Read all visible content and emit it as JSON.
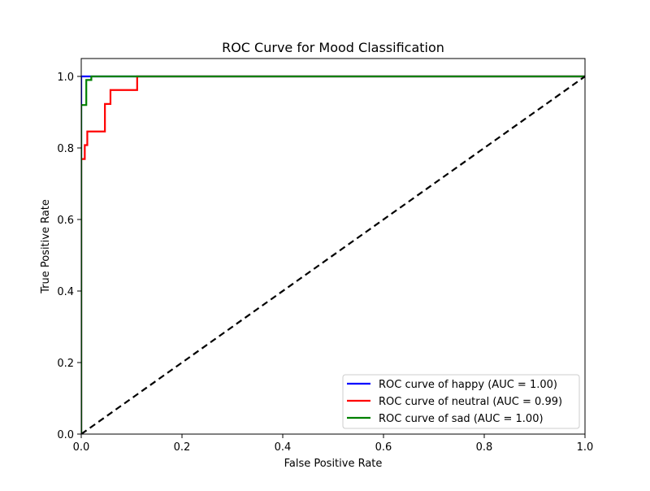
{
  "chart_data": {
    "type": "line",
    "title": "ROC Curve for Mood Classification",
    "xlabel": "False Positive Rate",
    "ylabel": "True Positive Rate",
    "xlim": [
      0.0,
      1.0
    ],
    "ylim": [
      0.0,
      1.05
    ],
    "xticks": [
      0.0,
      0.2,
      0.4,
      0.6,
      0.8,
      1.0
    ],
    "yticks": [
      0.0,
      0.2,
      0.4,
      0.6,
      0.8,
      1.0
    ],
    "xtick_labels": [
      "0.0",
      "0.2",
      "0.4",
      "0.6",
      "0.8",
      "1.0"
    ],
    "ytick_labels": [
      "0.0",
      "0.2",
      "0.4",
      "0.6",
      "0.8",
      "1.0"
    ],
    "grid": false,
    "legend_position": "lower-right",
    "series": [
      {
        "name": "ROC curve of happy (AUC = 1.00)",
        "color": "#0000ff",
        "line_style": "solid",
        "x": [
          0.0,
          0.0,
          0.02,
          1.0
        ],
        "y": [
          0.0,
          1.0,
          1.0,
          1.0
        ]
      },
      {
        "name": "ROC curve of neutral (AUC = 0.99)",
        "color": "#ff0000",
        "line_style": "solid",
        "x": [
          0.0,
          0.0,
          0.007,
          0.007,
          0.012,
          0.012,
          0.047,
          0.047,
          0.058,
          0.058,
          0.111,
          0.111,
          1.0
        ],
        "y": [
          0.0,
          0.769,
          0.769,
          0.808,
          0.808,
          0.846,
          0.846,
          0.923,
          0.923,
          0.962,
          0.962,
          1.0,
          1.0
        ]
      },
      {
        "name": "ROC curve of sad (AUC = 1.00)",
        "color": "#008000",
        "line_style": "solid",
        "x": [
          0.0,
          0.0,
          0.01,
          0.01,
          0.02,
          0.02,
          1.0
        ],
        "y": [
          0.0,
          0.92,
          0.92,
          0.99,
          0.99,
          1.0,
          1.0
        ]
      }
    ],
    "reference_line": {
      "color": "#000000",
      "line_style": "dashed",
      "x": [
        0.0,
        1.0
      ],
      "y": [
        0.0,
        1.0
      ]
    }
  }
}
